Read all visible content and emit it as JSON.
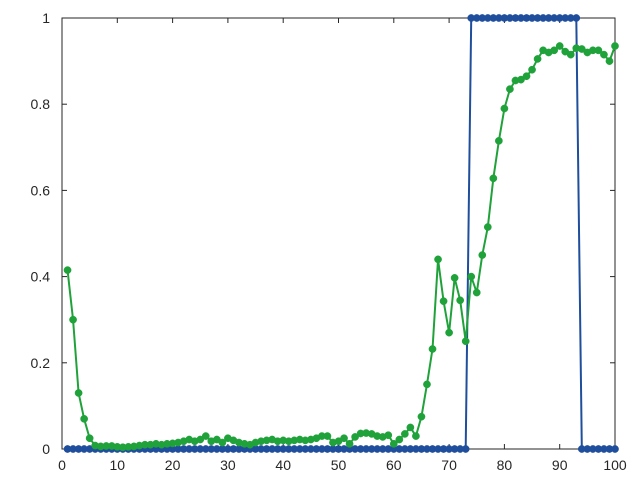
{
  "chart_data": {
    "type": "line",
    "title": "",
    "xlabel": "",
    "ylabel": "",
    "xlim": [
      0,
      100
    ],
    "ylim": [
      0,
      1
    ],
    "grid": false,
    "x_ticks": [
      0,
      10,
      20,
      30,
      40,
      50,
      60,
      70,
      80,
      90,
      100
    ],
    "x_tick_labels": [
      "0",
      "10",
      "20",
      "30",
      "40",
      "50",
      "60",
      "70",
      "80",
      "90",
      "100"
    ],
    "y_ticks": [
      0,
      0.2,
      0.4,
      0.6,
      0.8,
      1
    ],
    "y_tick_labels": [
      "0",
      "0.2",
      "0.4",
      "0.6",
      "0.8",
      "1"
    ],
    "series": [
      {
        "name": "blue",
        "color": "#1f4e9c",
        "x": [
          1,
          2,
          3,
          4,
          5,
          6,
          7,
          8,
          9,
          10,
          11,
          12,
          13,
          14,
          15,
          16,
          17,
          18,
          19,
          20,
          21,
          22,
          23,
          24,
          25,
          26,
          27,
          28,
          29,
          30,
          31,
          32,
          33,
          34,
          35,
          36,
          37,
          38,
          39,
          40,
          41,
          42,
          43,
          44,
          45,
          46,
          47,
          48,
          49,
          50,
          51,
          52,
          53,
          54,
          55,
          56,
          57,
          58,
          59,
          60,
          61,
          62,
          63,
          64,
          65,
          66,
          67,
          68,
          69,
          70,
          71,
          72,
          73,
          74,
          75,
          76,
          77,
          78,
          79,
          80,
          81,
          82,
          83,
          84,
          85,
          86,
          87,
          88,
          89,
          90,
          91,
          92,
          93,
          94,
          95,
          96,
          97,
          98,
          99,
          100
        ],
        "values": [
          0,
          0,
          0,
          0,
          0,
          0,
          0,
          0,
          0,
          0,
          0,
          0,
          0,
          0,
          0,
          0,
          0,
          0,
          0,
          0,
          0,
          0,
          0,
          0,
          0,
          0,
          0,
          0,
          0,
          0,
          0,
          0,
          0,
          0,
          0,
          0,
          0,
          0,
          0,
          0,
          0,
          0,
          0,
          0,
          0,
          0,
          0,
          0,
          0,
          0,
          0,
          0,
          0,
          0,
          0,
          0,
          0,
          0,
          0,
          0,
          0,
          0,
          0,
          0,
          0,
          0,
          0,
          0,
          0,
          0,
          0,
          0,
          0,
          1,
          1,
          1,
          1,
          1,
          1,
          1,
          1,
          1,
          1,
          1,
          1,
          1,
          1,
          1,
          1,
          1,
          1,
          1,
          1,
          0,
          0,
          0,
          0,
          0,
          0,
          0
        ]
      },
      {
        "name": "green",
        "color": "#20a23a",
        "x": [
          1,
          2,
          3,
          4,
          5,
          6,
          7,
          8,
          9,
          10,
          11,
          12,
          13,
          14,
          15,
          16,
          17,
          18,
          19,
          20,
          21,
          22,
          23,
          24,
          25,
          26,
          27,
          28,
          29,
          30,
          31,
          32,
          33,
          34,
          35,
          36,
          37,
          38,
          39,
          40,
          41,
          42,
          43,
          44,
          45,
          46,
          47,
          48,
          49,
          50,
          51,
          52,
          53,
          54,
          55,
          56,
          57,
          58,
          59,
          60,
          61,
          62,
          63,
          64,
          65,
          66,
          67,
          68,
          69,
          70,
          71,
          72,
          73,
          74,
          75,
          76,
          77,
          78,
          79,
          80,
          81,
          82,
          83,
          84,
          85,
          86,
          87,
          88,
          89,
          90,
          91,
          92,
          93,
          94,
          95,
          96,
          97,
          98,
          99,
          100
        ],
        "values": [
          0.415,
          0.3,
          0.13,
          0.07,
          0.025,
          0.008,
          0.006,
          0.007,
          0.007,
          0.005,
          0.004,
          0.005,
          0.006,
          0.008,
          0.01,
          0.01,
          0.012,
          0.01,
          0.012,
          0.013,
          0.015,
          0.018,
          0.022,
          0.018,
          0.022,
          0.03,
          0.018,
          0.022,
          0.015,
          0.025,
          0.02,
          0.015,
          0.012,
          0.01,
          0.015,
          0.018,
          0.02,
          0.022,
          0.018,
          0.02,
          0.018,
          0.02,
          0.022,
          0.02,
          0.022,
          0.025,
          0.03,
          0.03,
          0.015,
          0.018,
          0.025,
          0.012,
          0.028,
          0.036,
          0.037,
          0.035,
          0.03,
          0.028,
          0.032,
          0.012,
          0.022,
          0.035,
          0.05,
          0.03,
          0.075,
          0.15,
          0.232,
          0.44,
          0.343,
          0.27,
          0.397,
          0.345,
          0.25,
          0.4,
          0.363,
          0.45,
          0.515,
          0.628,
          0.715,
          0.79,
          0.835,
          0.855,
          0.857,
          0.865,
          0.88,
          0.905,
          0.925,
          0.92,
          0.925,
          0.935,
          0.922,
          0.915,
          0.93,
          0.928,
          0.92,
          0.925,
          0.925,
          0.915,
          0.9,
          0.935
        ]
      }
    ]
  }
}
